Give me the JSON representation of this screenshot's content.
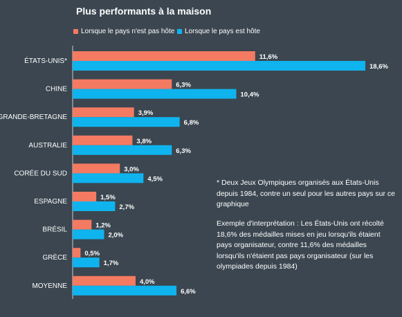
{
  "chart_data": {
    "type": "bar",
    "orientation": "horizontal",
    "title": "Plus performants à la maison",
    "categories": [
      "ÉTATS-UNIS*",
      "CHINE",
      "GRANDE-BRETAGNE",
      "AUSTRALIE",
      "CORÉE DU SUD",
      "ESPAGNE",
      "BRÉSIL",
      "GRÈCE",
      "MOYENNE"
    ],
    "series": [
      {
        "name": "Lorsque le pays n'est pas hôte",
        "color": "#f47a62",
        "values": [
          11.6,
          6.3,
          3.9,
          3.8,
          3.0,
          1.5,
          1.2,
          0.5,
          4.0
        ],
        "labels": [
          "11,6%",
          "6,3%",
          "3,9%",
          "3,8%",
          "3,0%",
          "1,5%",
          "1,2%",
          "0,5%",
          "4,0%"
        ]
      },
      {
        "name": "Lorsque le pays est hôte",
        "color": "#0fb4ee",
        "values": [
          18.6,
          10.4,
          6.8,
          6.3,
          4.5,
          2.7,
          2.0,
          1.7,
          6.6
        ],
        "labels": [
          "18,6%",
          "10,4%",
          "6,8%",
          "6,3%",
          "4,5%",
          "2,7%",
          "2,0%",
          "1,7%",
          "6,6%"
        ]
      }
    ],
    "xlim": [
      0,
      18.6
    ],
    "legend_position": "top",
    "grid": false,
    "background": "#3b4650"
  },
  "notes": {
    "asterisk": "* Deux Jeux Olympiques organisés aux États-Unis depuis 1984, contre un seul pour les autres pays sur ce graphique",
    "interpretation": "Exemple d'interprétation : Les États-Unis ont récolté 18,6% des médailles mises en jeu lorsqu'ils étaient pays organisateur, contre 11,6% des médailles lorsqu'ils n'étaient pas pays organisateur (sur les olympiades depuis 1984)"
  }
}
